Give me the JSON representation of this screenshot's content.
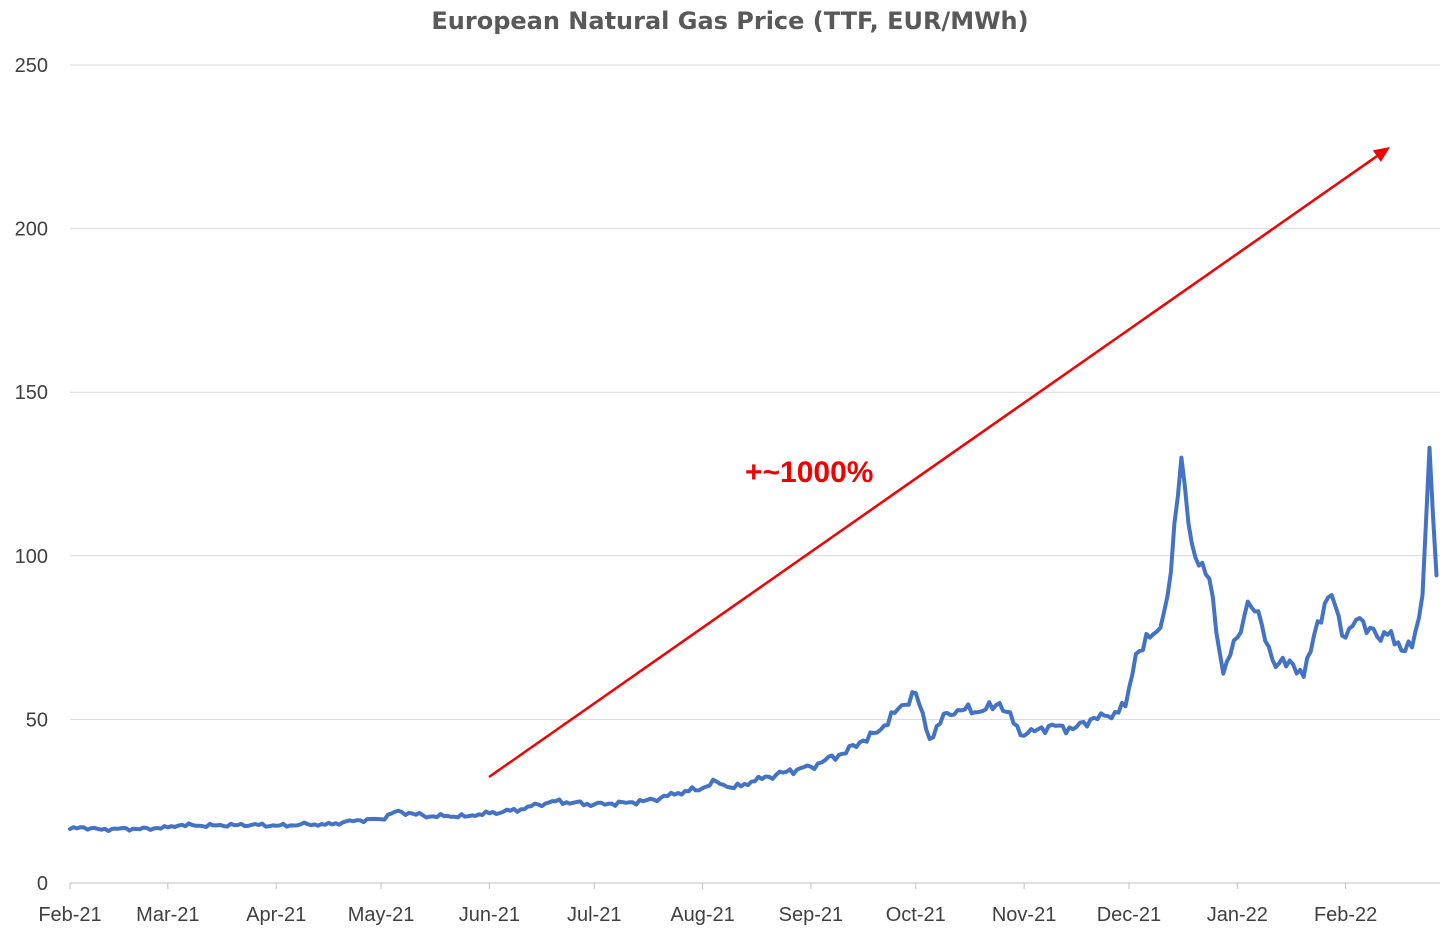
{
  "chart_data": {
    "type": "line",
    "title": "European Natural Gas Price (TTF, EUR/MWh)",
    "xlabel": "",
    "ylabel": "",
    "ylim": [
      0,
      250
    ],
    "yticks": [
      "0",
      "50",
      "100",
      "150",
      "200",
      "250"
    ],
    "x_tick_labels": [
      "Feb-21",
      "Mar-21",
      "Apr-21",
      "May-21",
      "Jun-21",
      "Jul-21",
      "Aug-21",
      "Sep-21",
      "Oct-21",
      "Nov-21",
      "Dec-21",
      "Jan-22",
      "Feb-22"
    ],
    "grid": "horizontal",
    "legend": "none",
    "series": [
      {
        "color": "#4472c4",
        "x": [
          "2021-02-01",
          "2021-02-05",
          "2021-02-10",
          "2021-02-15",
          "2021-02-20",
          "2021-02-25",
          "2021-03-01",
          "2021-03-05",
          "2021-03-10",
          "2021-03-15",
          "2021-03-20",
          "2021-03-25",
          "2021-04-01",
          "2021-04-05",
          "2021-04-10",
          "2021-04-15",
          "2021-04-20",
          "2021-04-25",
          "2021-05-01",
          "2021-05-05",
          "2021-05-10",
          "2021-05-15",
          "2021-05-20",
          "2021-05-25",
          "2021-05-29",
          "2021-06-05",
          "2021-06-10",
          "2021-06-15",
          "2021-06-20",
          "2021-06-25",
          "2021-07-01",
          "2021-07-05",
          "2021-07-10",
          "2021-07-15",
          "2021-07-20",
          "2021-07-25",
          "2021-08-01",
          "2021-08-05",
          "2021-08-10",
          "2021-08-15",
          "2021-08-20",
          "2021-08-25",
          "2021-09-01",
          "2021-09-05",
          "2021-09-10",
          "2021-09-15",
          "2021-09-20",
          "2021-09-25",
          "2021-10-01",
          "2021-10-05",
          "2021-10-10",
          "2021-10-15",
          "2021-10-20",
          "2021-10-25",
          "2021-11-01",
          "2021-11-05",
          "2021-11-10",
          "2021-11-15",
          "2021-11-20",
          "2021-11-25",
          "2021-11-30",
          "2021-12-03",
          "2021-12-07",
          "2021-12-10",
          "2021-12-13",
          "2021-12-16",
          "2021-12-18",
          "2021-12-21",
          "2021-12-24",
          "2021-12-28",
          "2022-01-01",
          "2022-01-04",
          "2022-01-08",
          "2022-01-12",
          "2022-01-16",
          "2022-01-20",
          "2022-01-24",
          "2022-01-28",
          "2022-02-01",
          "2022-02-05",
          "2022-02-08",
          "2022-02-11",
          "2022-02-14",
          "2022-02-17",
          "2022-02-20",
          "2022-02-23",
          "2022-02-25",
          "2022-02-27"
        ],
        "y": [
          16.5,
          17.0,
          16.3,
          16.6,
          16.5,
          16.7,
          17.0,
          17.8,
          17.5,
          17.6,
          17.7,
          17.8,
          17.5,
          17.6,
          18.0,
          17.8,
          18.5,
          19.2,
          19.5,
          21.8,
          21.2,
          20.3,
          20.5,
          20.3,
          21.0,
          21.8,
          22.5,
          24.0,
          25.0,
          24.5,
          24.0,
          24.2,
          24.5,
          25.0,
          26.0,
          27.5,
          29.0,
          31.0,
          29.0,
          31.0,
          32.5,
          34.0,
          35.5,
          37.5,
          39.5,
          43.0,
          46.0,
          52.0,
          58.0,
          44.0,
          52.0,
          53.0,
          52.5,
          55.0,
          45.0,
          47.0,
          48.0,
          47.0,
          50.0,
          51.0,
          54.0,
          70.0,
          75.0,
          78.0,
          95.0,
          130.0,
          110.0,
          97.0,
          93.0,
          64.0,
          75.0,
          86.0,
          79.0,
          66.0,
          68.0,
          63.0,
          80.0,
          88.0,
          75.0,
          81.0,
          78.0,
          74.0,
          77.0,
          71.0,
          72.0,
          88.0,
          133.0,
          94.0
        ]
      }
    ],
    "annotations": [
      {
        "text": "+~1000%",
        "color": "#ee0000"
      }
    ]
  }
}
